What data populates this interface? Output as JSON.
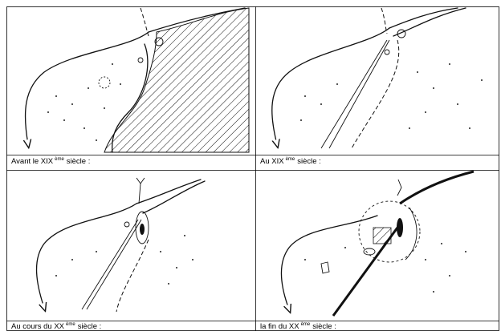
{
  "cells": [
    {
      "caption": {
        "text": "Avant le XIX",
        "sup": "ème",
        "rest": "siècle :"
      }
    },
    {
      "caption": {
        "text": "Au XIX",
        "sup": "ème",
        "rest": "siècle :"
      }
    },
    {
      "caption": {
        "text": "Au cours du XX",
        "sup": "ème",
        "rest": "siècle :"
      }
    },
    {
      "caption": {
        "text": "la fin du XX",
        "sup": "ème",
        "rest": "siècle :"
      }
    }
  ]
}
